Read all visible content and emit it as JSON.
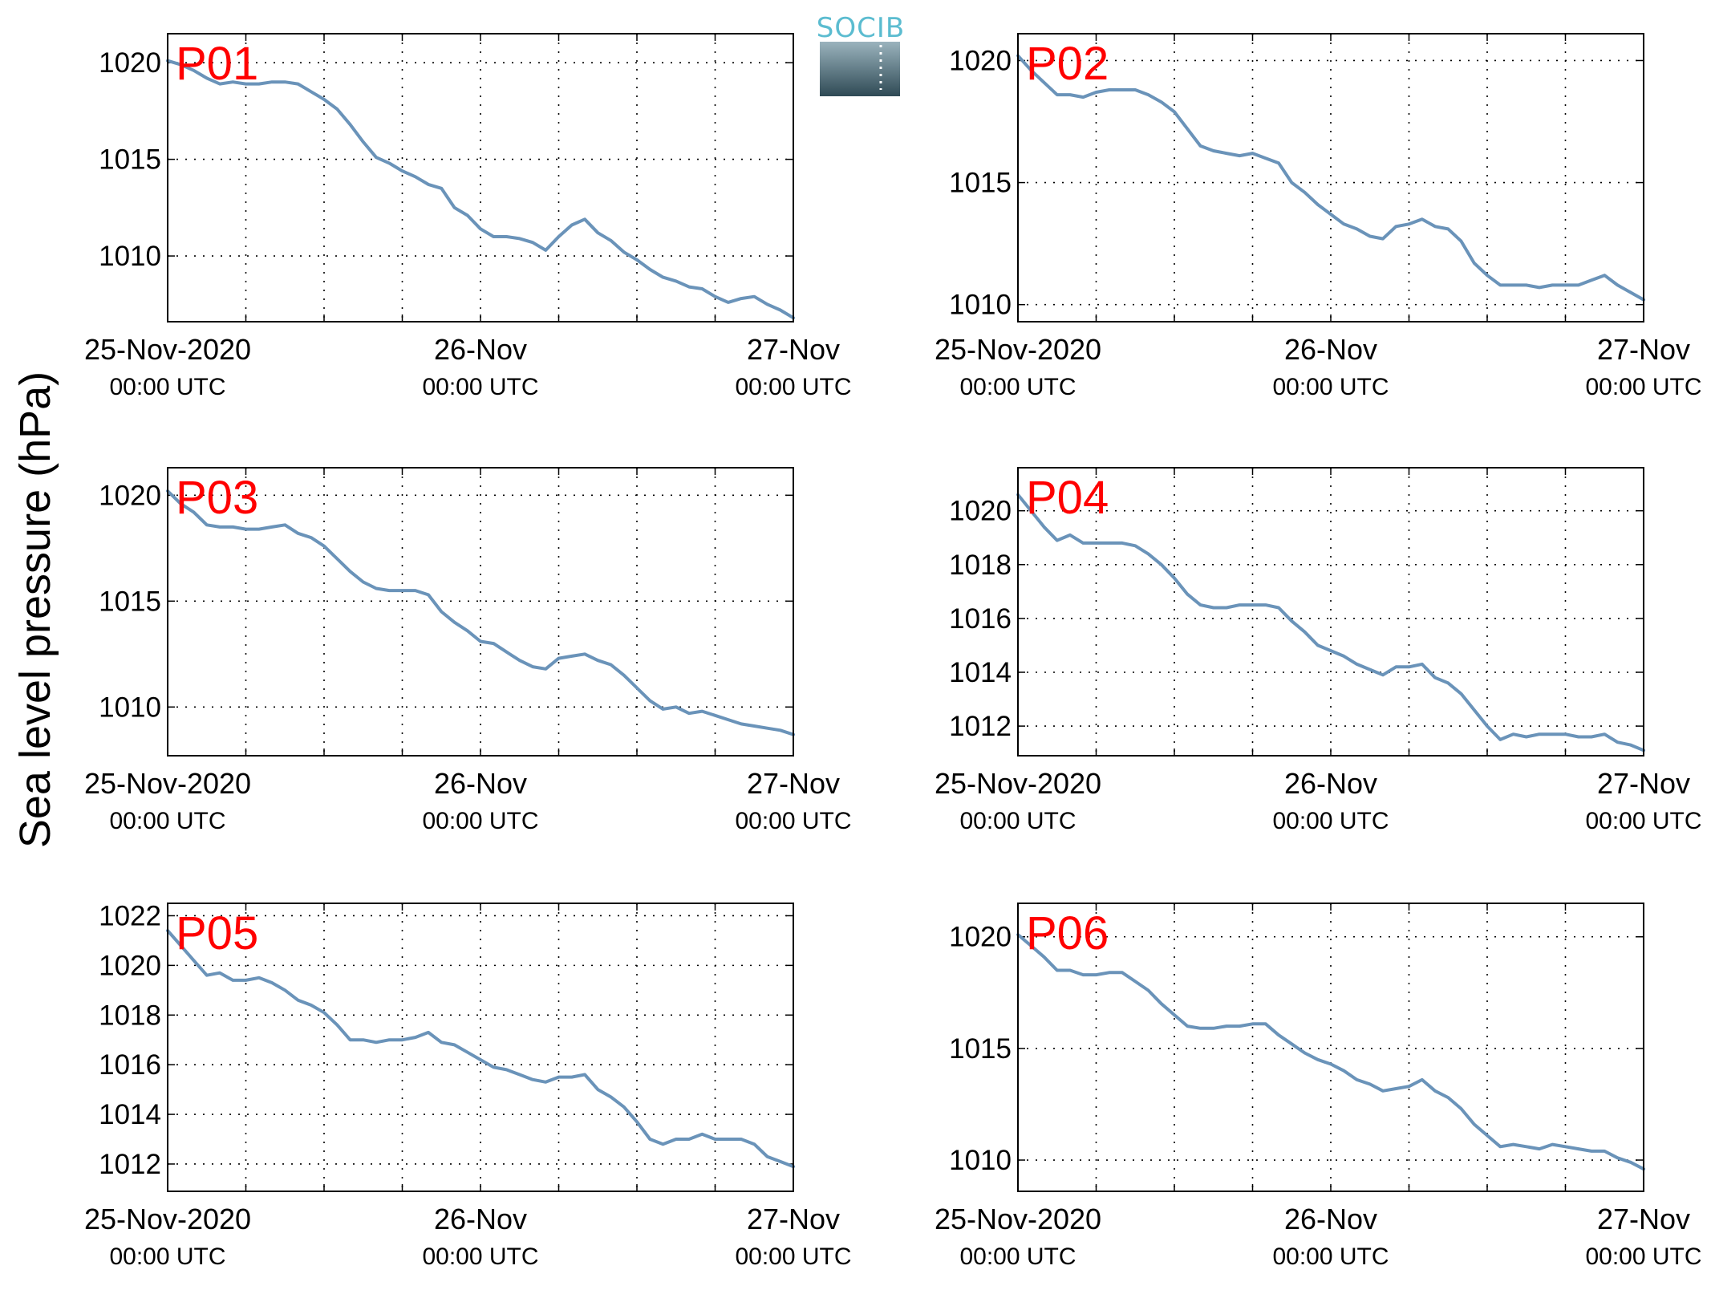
{
  "figure": {
    "ylabel": "Sea level pressure (hPa)",
    "logo_text": "SOCIB",
    "x_ticks": [
      {
        "value": 0,
        "line1": "25-Nov-2020",
        "line2": "00:00 UTC"
      },
      {
        "value": 24,
        "line1": "26-Nov",
        "line2": "00:00 UTC"
      },
      {
        "value": 48,
        "line1": "27-Nov",
        "line2": "00:00 UTC"
      }
    ],
    "colors": {
      "line": "#6a93b9",
      "station_label": "#ff0000",
      "logo_text": "#5bbcd0",
      "logo_top": "#9ab3bd",
      "logo_bottom": "#2f4a55"
    }
  },
  "chart_data": [
    {
      "type": "line",
      "station": "P01",
      "xlim": [
        0,
        48
      ],
      "ylim": [
        1006.6,
        1021.5
      ],
      "yticks": [
        1010,
        1015,
        1020
      ],
      "grid": true,
      "x": [
        0,
        1,
        2,
        3,
        4,
        5,
        6,
        7,
        8,
        9,
        10,
        11,
        12,
        13,
        14,
        15,
        16,
        17,
        18,
        19,
        20,
        21,
        22,
        23,
        24,
        25,
        26,
        27,
        28,
        29,
        30,
        31,
        32,
        33,
        34,
        35,
        36,
        37,
        38,
        39,
        40,
        41,
        42,
        43,
        44,
        45,
        46,
        47,
        48
      ],
      "y": [
        1020.1,
        1019.9,
        1019.6,
        1019.2,
        1018.9,
        1019.0,
        1018.9,
        1018.9,
        1019.0,
        1019.0,
        1018.9,
        1018.5,
        1018.1,
        1017.6,
        1016.8,
        1015.9,
        1015.1,
        1014.8,
        1014.4,
        1014.1,
        1013.7,
        1013.5,
        1012.5,
        1012.1,
        1011.4,
        1011.0,
        1011.0,
        1010.9,
        1010.7,
        1010.3,
        1011.0,
        1011.6,
        1011.9,
        1011.2,
        1010.8,
        1010.2,
        1009.8,
        1009.3,
        1008.9,
        1008.7,
        1008.4,
        1008.3,
        1007.9,
        1007.6,
        1007.8,
        1007.9,
        1007.5,
        1007.2,
        1006.8
      ]
    },
    {
      "type": "line",
      "station": "P02",
      "xlim": [
        0,
        48
      ],
      "ylim": [
        1009.3,
        1021.1
      ],
      "yticks": [
        1010,
        1015,
        1020
      ],
      "grid": true,
      "x": [
        0,
        1,
        2,
        3,
        4,
        5,
        6,
        7,
        8,
        9,
        10,
        11,
        12,
        13,
        14,
        15,
        16,
        17,
        18,
        19,
        20,
        21,
        22,
        23,
        24,
        25,
        26,
        27,
        28,
        29,
        30,
        31,
        32,
        33,
        34,
        35,
        36,
        37,
        38,
        39,
        40,
        41,
        42,
        43,
        44,
        45,
        46,
        47,
        48
      ],
      "y": [
        1020.2,
        1019.6,
        1019.1,
        1018.6,
        1018.6,
        1018.5,
        1018.7,
        1018.8,
        1018.8,
        1018.8,
        1018.6,
        1018.3,
        1017.9,
        1017.2,
        1016.5,
        1016.3,
        1016.2,
        1016.1,
        1016.2,
        1016.0,
        1015.8,
        1015.0,
        1014.6,
        1014.1,
        1013.7,
        1013.3,
        1013.1,
        1012.8,
        1012.7,
        1013.2,
        1013.3,
        1013.5,
        1013.2,
        1013.1,
        1012.6,
        1011.7,
        1011.2,
        1010.8,
        1010.8,
        1010.8,
        1010.7,
        1010.8,
        1010.8,
        1010.8,
        1011.0,
        1011.2,
        1010.8,
        1010.5,
        1010.2
      ]
    },
    {
      "type": "line",
      "station": "P03",
      "xlim": [
        0,
        48
      ],
      "ylim": [
        1007.7,
        1021.3
      ],
      "yticks": [
        1010,
        1015,
        1020
      ],
      "grid": true,
      "x": [
        0,
        1,
        2,
        3,
        4,
        5,
        6,
        7,
        8,
        9,
        10,
        11,
        12,
        13,
        14,
        15,
        16,
        17,
        18,
        19,
        20,
        21,
        22,
        23,
        24,
        25,
        26,
        27,
        28,
        29,
        30,
        31,
        32,
        33,
        34,
        35,
        36,
        37,
        38,
        39,
        40,
        41,
        42,
        43,
        44,
        45,
        46,
        47,
        48
      ],
      "y": [
        1020.2,
        1019.6,
        1019.2,
        1018.6,
        1018.5,
        1018.5,
        1018.4,
        1018.4,
        1018.5,
        1018.6,
        1018.2,
        1018.0,
        1017.6,
        1017.0,
        1016.4,
        1015.9,
        1015.6,
        1015.5,
        1015.5,
        1015.5,
        1015.3,
        1014.5,
        1014.0,
        1013.6,
        1013.1,
        1013.0,
        1012.6,
        1012.2,
        1011.9,
        1011.8,
        1012.3,
        1012.4,
        1012.5,
        1012.2,
        1012.0,
        1011.5,
        1010.9,
        1010.3,
        1009.9,
        1010.0,
        1009.7,
        1009.8,
        1009.6,
        1009.4,
        1009.2,
        1009.1,
        1009.0,
        1008.9,
        1008.7
      ]
    },
    {
      "type": "line",
      "station": "P04",
      "xlim": [
        0,
        48
      ],
      "ylim": [
        1010.9,
        1021.6
      ],
      "yticks": [
        1012,
        1014,
        1016,
        1018,
        1020
      ],
      "grid": true,
      "x": [
        0,
        1,
        2,
        3,
        4,
        5,
        6,
        7,
        8,
        9,
        10,
        11,
        12,
        13,
        14,
        15,
        16,
        17,
        18,
        19,
        20,
        21,
        22,
        23,
        24,
        25,
        26,
        27,
        28,
        29,
        30,
        31,
        32,
        33,
        34,
        35,
        36,
        37,
        38,
        39,
        40,
        41,
        42,
        43,
        44,
        45,
        46,
        47,
        48
      ],
      "y": [
        1020.6,
        1020.0,
        1019.4,
        1018.9,
        1019.1,
        1018.8,
        1018.8,
        1018.8,
        1018.8,
        1018.7,
        1018.4,
        1018.0,
        1017.5,
        1016.9,
        1016.5,
        1016.4,
        1016.4,
        1016.5,
        1016.5,
        1016.5,
        1016.4,
        1015.9,
        1015.5,
        1015.0,
        1014.8,
        1014.6,
        1014.3,
        1014.1,
        1013.9,
        1014.2,
        1014.2,
        1014.3,
        1013.8,
        1013.6,
        1013.2,
        1012.6,
        1012.0,
        1011.5,
        1011.7,
        1011.6,
        1011.7,
        1011.7,
        1011.7,
        1011.6,
        1011.6,
        1011.7,
        1011.4,
        1011.3,
        1011.1
      ]
    },
    {
      "type": "line",
      "station": "P05",
      "xlim": [
        0,
        48
      ],
      "ylim": [
        1010.9,
        1022.5
      ],
      "yticks": [
        1012,
        1014,
        1016,
        1018,
        1020,
        1022
      ],
      "grid": true,
      "x": [
        0,
        1,
        2,
        3,
        4,
        5,
        6,
        7,
        8,
        9,
        10,
        11,
        12,
        13,
        14,
        15,
        16,
        17,
        18,
        19,
        20,
        21,
        22,
        23,
        24,
        25,
        26,
        27,
        28,
        29,
        30,
        31,
        32,
        33,
        34,
        35,
        36,
        37,
        38,
        39,
        40,
        41,
        42,
        43,
        44,
        45,
        46,
        47,
        48
      ],
      "y": [
        1021.4,
        1020.8,
        1020.2,
        1019.6,
        1019.7,
        1019.4,
        1019.4,
        1019.5,
        1019.3,
        1019.0,
        1018.6,
        1018.4,
        1018.1,
        1017.6,
        1017.0,
        1017.0,
        1016.9,
        1017.0,
        1017.0,
        1017.1,
        1017.3,
        1016.9,
        1016.8,
        1016.5,
        1016.2,
        1015.9,
        1015.8,
        1015.6,
        1015.4,
        1015.3,
        1015.5,
        1015.5,
        1015.6,
        1015.0,
        1014.7,
        1014.3,
        1013.7,
        1013.0,
        1012.8,
        1013.0,
        1013.0,
        1013.2,
        1013.0,
        1013.0,
        1013.0,
        1012.8,
        1012.3,
        1012.1,
        1011.9
      ]
    },
    {
      "type": "line",
      "station": "P06",
      "xlim": [
        0,
        48
      ],
      "ylim": [
        1008.6,
        1021.5
      ],
      "yticks": [
        1010,
        1015,
        1020
      ],
      "grid": true,
      "x": [
        0,
        1,
        2,
        3,
        4,
        5,
        6,
        7,
        8,
        9,
        10,
        11,
        12,
        13,
        14,
        15,
        16,
        17,
        18,
        19,
        20,
        21,
        22,
        23,
        24,
        25,
        26,
        27,
        28,
        29,
        30,
        31,
        32,
        33,
        34,
        35,
        36,
        37,
        38,
        39,
        40,
        41,
        42,
        43,
        44,
        45,
        46,
        47,
        48
      ],
      "y": [
        1020.1,
        1019.6,
        1019.1,
        1018.5,
        1018.5,
        1018.3,
        1018.3,
        1018.4,
        1018.4,
        1018.0,
        1017.6,
        1017.0,
        1016.5,
        1016.0,
        1015.9,
        1015.9,
        1016.0,
        1016.0,
        1016.1,
        1016.1,
        1015.6,
        1015.2,
        1014.8,
        1014.5,
        1014.3,
        1014.0,
        1013.6,
        1013.4,
        1013.1,
        1013.2,
        1013.3,
        1013.6,
        1013.1,
        1012.8,
        1012.3,
        1011.6,
        1011.1,
        1010.6,
        1010.7,
        1010.6,
        1010.5,
        1010.7,
        1010.6,
        1010.5,
        1010.4,
        1010.4,
        1010.1,
        1009.9,
        1009.6
      ]
    }
  ]
}
